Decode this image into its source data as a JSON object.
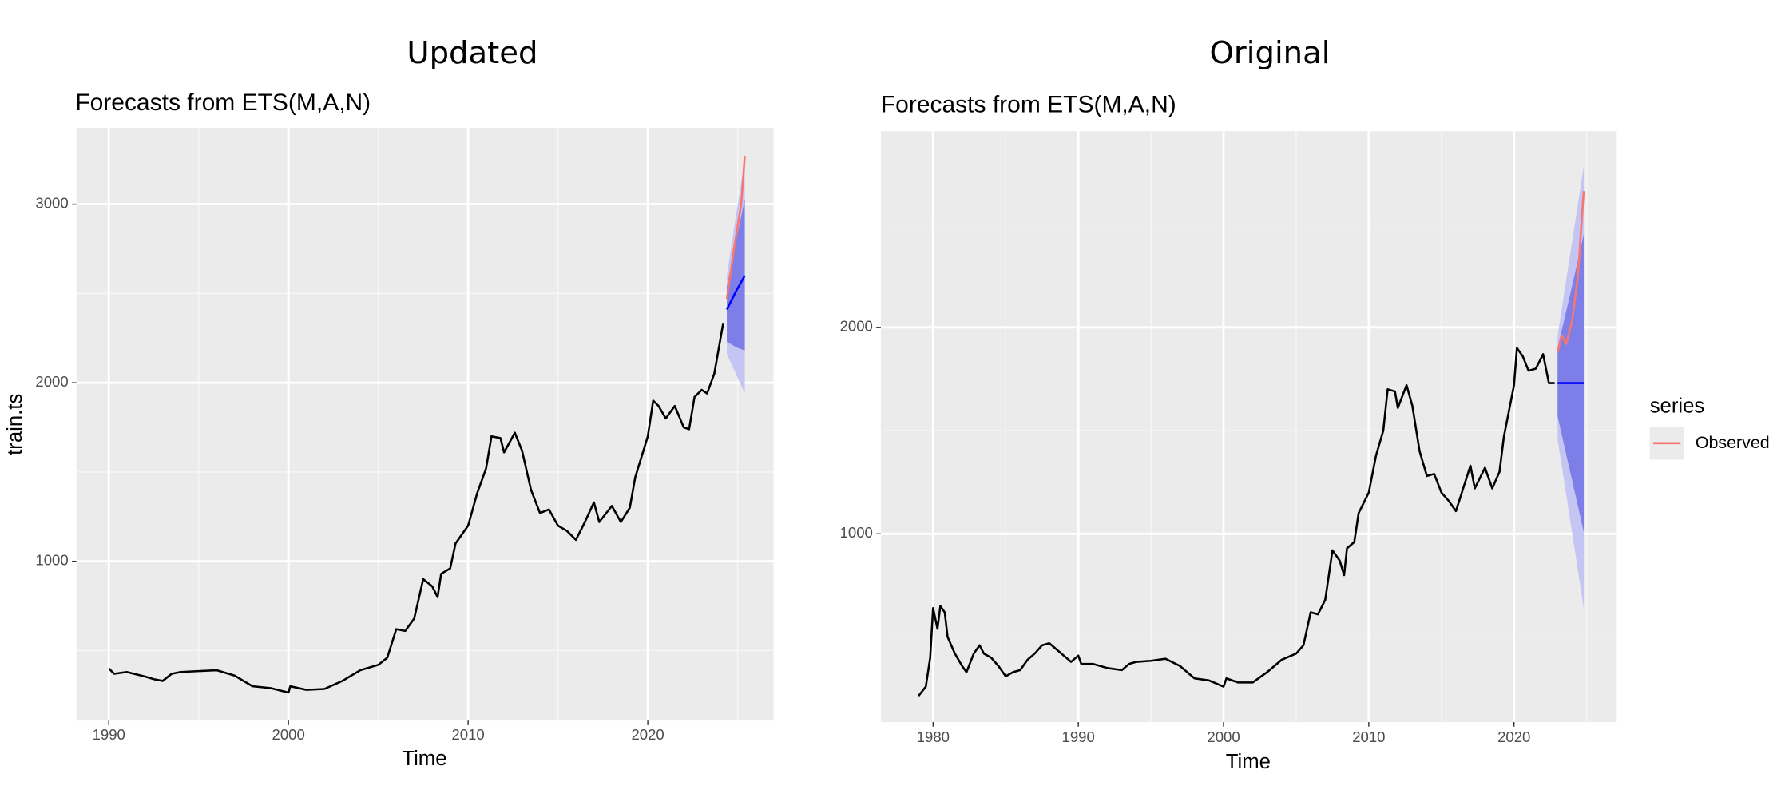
{
  "chart_data": [
    {
      "type": "forecast",
      "title": "Updated",
      "subtitle": "Forecasts from ETS(M,A,N)",
      "x_label": "Time",
      "y_label": "train.ts",
      "xlim": [
        1988.2,
        2027.0
      ],
      "ylim": [
        112,
        3428
      ],
      "xticks": [
        1990,
        2000,
        2010,
        2020
      ],
      "yticks": [
        1000,
        2000,
        3000
      ],
      "grid": true,
      "history": {
        "color": "#000000",
        "x": [
          1990,
          1990.3,
          1991,
          1992,
          1992.5,
          1993,
          1993.5,
          1994,
          1995,
          1996,
          1997,
          1998,
          1999,
          2000,
          2000.1,
          2001,
          2002,
          2003,
          2004,
          2005,
          2005.5,
          2006,
          2006.5,
          2007,
          2007.5,
          2008,
          2008.3,
          2008.5,
          2009,
          2009.3,
          2010,
          2010.5,
          2011,
          2011.3,
          2011.8,
          2012,
          2012.6,
          2013,
          2013.5,
          2014,
          2014.5,
          2015,
          2015.5,
          2016,
          2016.5,
          2017,
          2017.3,
          2018,
          2018.5,
          2019,
          2019.3,
          2020,
          2020.3,
          2020.6,
          2021,
          2021.5,
          2022,
          2022.3,
          2022.6,
          2023,
          2023.3,
          2023.7,
          2024.2
        ],
        "values": [
          400,
          370,
          380,
          355,
          340,
          330,
          370,
          380,
          385,
          390,
          360,
          300,
          290,
          265,
          300,
          280,
          285,
          330,
          390,
          420,
          460,
          620,
          610,
          680,
          900,
          860,
          800,
          930,
          960,
          1100,
          1200,
          1380,
          1520,
          1700,
          1690,
          1610,
          1720,
          1620,
          1400,
          1270,
          1290,
          1200,
          1170,
          1120,
          1220,
          1330,
          1220,
          1310,
          1220,
          1300,
          1470,
          1700,
          1900,
          1870,
          1800,
          1870,
          1750,
          1740,
          1920,
          1960,
          1940,
          2050,
          2335
        ]
      },
      "interval_95": {
        "color": "#c5c5f3",
        "x": [
          2024.4,
          2024.9,
          2025.4
        ],
        "lower": [
          2160,
          2050,
          1940
        ],
        "upper": [
          2600,
          2930,
          3250
        ]
      },
      "interval_80": {
        "color": "#7e7ee8",
        "x": [
          2024.4,
          2024.9,
          2025.4
        ],
        "lower": [
          2230,
          2200,
          2180
        ],
        "upper": [
          2540,
          2790,
          3030
        ]
      },
      "forecast": {
        "color": "#0000ff",
        "x": [
          2024.4,
          2024.9,
          2025.4
        ],
        "values": [
          2410,
          2510,
          2600
        ]
      },
      "observed": {
        "color": "#f8766d",
        "x": [
          2024.4,
          2024.8,
          2025.2,
          2025.4
        ],
        "values": [
          2470,
          2750,
          3000,
          3270
        ]
      }
    },
    {
      "type": "forecast",
      "title": "Original",
      "subtitle": "Forecasts from ETS(M,A,N)",
      "x_label": "Time",
      "xlim": [
        1976.4,
        2027.07
      ],
      "ylim": [
        88,
        2950
      ],
      "xticks": [
        1980,
        1990,
        2000,
        2010,
        2020
      ],
      "yticks": [
        1000,
        2000
      ],
      "grid": true,
      "history": {
        "color": "#000000",
        "x": [
          1979,
          1979.5,
          1979.8,
          1980,
          1980.3,
          1980.5,
          1980.8,
          1981,
          1981.5,
          1982,
          1982.3,
          1982.8,
          1983.2,
          1983.5,
          1984,
          1984.5,
          1985,
          1985.5,
          1986,
          1986.5,
          1987,
          1987.5,
          1988,
          1988.5,
          1989,
          1989.5,
          1990,
          1990.2,
          1991,
          1992,
          1993,
          1993.5,
          1994,
          1995,
          1996,
          1997,
          1998,
          1999,
          2000,
          2000.2,
          2001,
          2002,
          2003,
          2004,
          2005,
          2005.5,
          2006,
          2006.5,
          2007,
          2007.5,
          2008,
          2008.3,
          2008.5,
          2009,
          2009.3,
          2010,
          2010.5,
          2011,
          2011.3,
          2011.8,
          2012,
          2012.6,
          2013,
          2013.5,
          2014,
          2014.5,
          2015,
          2015.5,
          2016,
          2016.5,
          2017,
          2017.3,
          2018,
          2018.5,
          2019,
          2019.3,
          2020,
          2020.2,
          2020.6,
          2021,
          2021.5,
          2022,
          2022.4,
          2022.8
        ],
        "values": [
          215,
          260,
          400,
          640,
          540,
          650,
          620,
          500,
          420,
          360,
          330,
          420,
          460,
          420,
          400,
          360,
          310,
          330,
          340,
          390,
          420,
          460,
          470,
          440,
          410,
          380,
          410,
          370,
          370,
          350,
          340,
          370,
          380,
          385,
          395,
          360,
          300,
          290,
          260,
          300,
          280,
          280,
          330,
          390,
          420,
          460,
          620,
          610,
          680,
          920,
          870,
          800,
          930,
          960,
          1100,
          1200,
          1380,
          1500,
          1700,
          1690,
          1610,
          1720,
          1620,
          1400,
          1280,
          1290,
          1200,
          1160,
          1110,
          1220,
          1330,
          1220,
          1320,
          1220,
          1300,
          1470,
          1720,
          1900,
          1860,
          1790,
          1800,
          1870,
          1730,
          1730
        ]
      },
      "interval_95": {
        "color": "#c5c5f3",
        "x": [
          2023.0,
          2023.9,
          2024.8
        ],
        "lower": [
          1460,
          1050,
          640
        ],
        "upper": [
          1960,
          2370,
          2780
        ]
      },
      "interval_80": {
        "color": "#7e7ee8",
        "x": [
          2023.0,
          2023.9,
          2024.8
        ],
        "lower": [
          1570,
          1290,
          1010
        ],
        "upper": [
          1900,
          2170,
          2450
        ]
      },
      "forecast": {
        "color": "#0000ff",
        "x": [
          2023.0,
          2023.9,
          2024.8
        ],
        "values": [
          1730,
          1730,
          1730
        ]
      },
      "observed": {
        "color": "#f8766d",
        "x": [
          2023.0,
          2023.3,
          2023.6,
          2024.0,
          2024.4,
          2024.8
        ],
        "values": [
          1880,
          1960,
          1920,
          2030,
          2250,
          2660
        ]
      },
      "legend": {
        "title": "series",
        "label": "Observed"
      }
    }
  ]
}
